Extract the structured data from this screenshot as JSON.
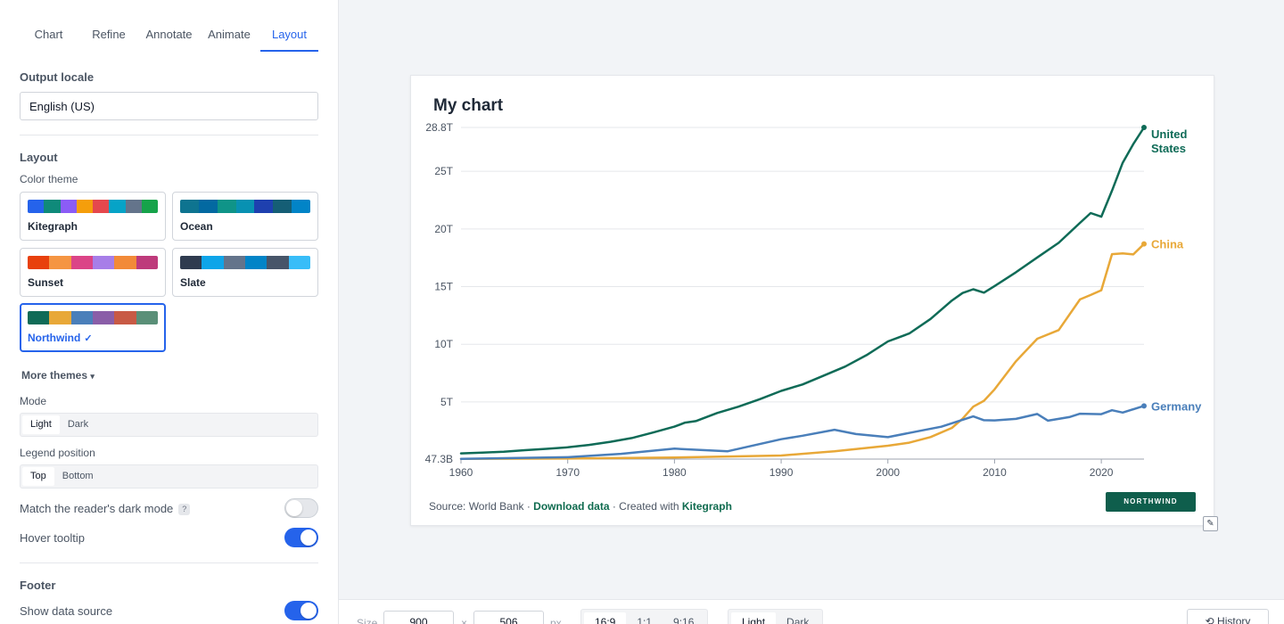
{
  "sidebar": {
    "tabs": [
      {
        "label": "Chart",
        "active": false
      },
      {
        "label": "Refine",
        "active": false
      },
      {
        "label": "Annotate",
        "active": false
      },
      {
        "label": "Animate",
        "active": false
      },
      {
        "label": "Layout",
        "active": true
      }
    ],
    "output_locale": {
      "title": "Output locale",
      "value": "English (US)"
    },
    "layout": {
      "title": "Layout",
      "color_theme_label": "Color theme",
      "themes": [
        {
          "name": "Kitegraph",
          "colors": [
            "#2563eb",
            "#0f8a7a",
            "#8b5cf6",
            "#f59e0b",
            "#e5484d",
            "#06a3c7",
            "#64748b",
            "#16a34a"
          ],
          "selected": false
        },
        {
          "name": "Ocean",
          "colors": [
            "#0e7490",
            "#0369a1",
            "#0f9488",
            "#0891b2",
            "#1e40af",
            "#155e75",
            "#0284c7"
          ],
          "selected": false
        },
        {
          "name": "Sunset",
          "colors": [
            "#e8400c",
            "#f59542",
            "#db4487",
            "#a77ee8",
            "#f28a38",
            "#be3a7b"
          ],
          "selected": false
        },
        {
          "name": "Slate",
          "colors": [
            "#2f3b4f",
            "#0ea5e9",
            "#64748b",
            "#0284c7",
            "#475569",
            "#38bdf8"
          ],
          "selected": false
        },
        {
          "name": "Northwind",
          "colors": [
            "#0f6b57",
            "#e8a838",
            "#4a7fba",
            "#8a5ea8",
            "#c85a45",
            "#5a8f78"
          ],
          "selected": true
        }
      ],
      "more_themes": "More themes",
      "mode": {
        "label": "Mode",
        "options": [
          "Light",
          "Dark"
        ],
        "selected": "Light"
      },
      "legend_position": {
        "label": "Legend position",
        "options": [
          "Top",
          "Bottom"
        ],
        "selected": "Top"
      },
      "match_dark_mode": {
        "label": "Match the reader's dark mode",
        "help": "?",
        "on": false
      },
      "hover_tooltip": {
        "label": "Hover tooltip",
        "on": true
      }
    },
    "footer": {
      "title": "Footer",
      "show_data_source": {
        "label": "Show data source",
        "on": true
      }
    }
  },
  "chart": {
    "title": "My chart",
    "footer": {
      "source_prefix": "Source: World Bank · ",
      "download": "Download data",
      "created_prefix": " · Created with ",
      "created_brand": "Kitegraph"
    },
    "brand_badge": "NORTHWIND",
    "resize_icon": "✎"
  },
  "chart_data": {
    "type": "line",
    "title": "My chart",
    "xlabel": "",
    "ylabel": "",
    "xlim": [
      1960,
      2024
    ],
    "ylim": [
      0.0473,
      28.8
    ],
    "y_unit": "T",
    "x_ticks": [
      1960,
      1970,
      1980,
      1990,
      2000,
      2010,
      2020
    ],
    "y_ticks": [
      {
        "value": 0.0473,
        "label": "47.3B"
      },
      {
        "value": 5,
        "label": "5T"
      },
      {
        "value": 10,
        "label": "10T"
      },
      {
        "value": 15,
        "label": "15T"
      },
      {
        "value": 20,
        "label": "20T"
      },
      {
        "value": 25,
        "label": "25T"
      },
      {
        "value": 28.8,
        "label": "28.8T"
      }
    ],
    "grid": true,
    "legend": "direct-labels-right",
    "series": [
      {
        "name": "United States",
        "label_lines": [
          "United",
          "States"
        ],
        "color": "#0f6b57",
        "x": [
          1960,
          1962,
          1964,
          1966,
          1968,
          1970,
          1972,
          1974,
          1976,
          1978,
          1980,
          1981,
          1982,
          1984,
          1986,
          1988,
          1990,
          1992,
          1994,
          1996,
          1998,
          2000,
          2002,
          2004,
          2006,
          2007,
          2008,
          2009,
          2010,
          2012,
          2014,
          2016,
          2018,
          2019,
          2020,
          2021,
          2022,
          2023,
          2024
        ],
        "y": [
          0.54,
          0.6,
          0.69,
          0.82,
          0.94,
          1.07,
          1.28,
          1.55,
          1.87,
          2.35,
          2.86,
          3.21,
          3.34,
          4.04,
          4.59,
          5.24,
          5.96,
          6.52,
          7.29,
          8.07,
          9.06,
          10.25,
          10.94,
          12.2,
          13.8,
          14.45,
          14.77,
          14.48,
          15.05,
          16.25,
          17.53,
          18.8,
          20.53,
          21.38,
          21.06,
          23.32,
          25.74,
          27.36,
          28.8
        ]
      },
      {
        "name": "China",
        "label_lines": [
          "China"
        ],
        "color": "#e8a838",
        "x": [
          1960,
          1970,
          1980,
          1990,
          1995,
          2000,
          2002,
          2004,
          2006,
          2007,
          2008,
          2009,
          2010,
          2012,
          2014,
          2016,
          2018,
          2019,
          2020,
          2021,
          2022,
          2023,
          2024
        ],
        "y": [
          0.06,
          0.09,
          0.19,
          0.36,
          0.73,
          1.21,
          1.47,
          1.96,
          2.75,
          3.55,
          4.59,
          5.1,
          6.09,
          8.53,
          10.48,
          11.23,
          13.89,
          14.28,
          14.69,
          17.82,
          17.88,
          17.79,
          18.7
        ]
      },
      {
        "name": "Germany",
        "label_lines": [
          "Germany"
        ],
        "color": "#4a7fba",
        "x": [
          1960,
          1970,
          1975,
          1980,
          1985,
          1990,
          1992,
          1995,
          1997,
          2000,
          2003,
          2005,
          2008,
          2009,
          2010,
          2012,
          2014,
          2015,
          2017,
          2018,
          2020,
          2021,
          2022,
          2024
        ],
        "y": [
          0.07,
          0.21,
          0.5,
          0.95,
          0.73,
          1.77,
          2.07,
          2.59,
          2.22,
          1.95,
          2.5,
          2.85,
          3.75,
          3.42,
          3.4,
          3.53,
          3.96,
          3.38,
          3.69,
          3.98,
          3.94,
          4.28,
          4.08,
          4.66
        ]
      }
    ]
  },
  "bottombar": {
    "size_label": "Size",
    "width": "900",
    "times": "×",
    "height": "506",
    "unit": "px",
    "ratios": [
      "16:9",
      "1:1",
      "9:16"
    ],
    "selected_ratio": "16:9",
    "modes": [
      "Light",
      "Dark"
    ],
    "selected_mode": "Light",
    "history": "History",
    "history_icon": "⟲"
  }
}
